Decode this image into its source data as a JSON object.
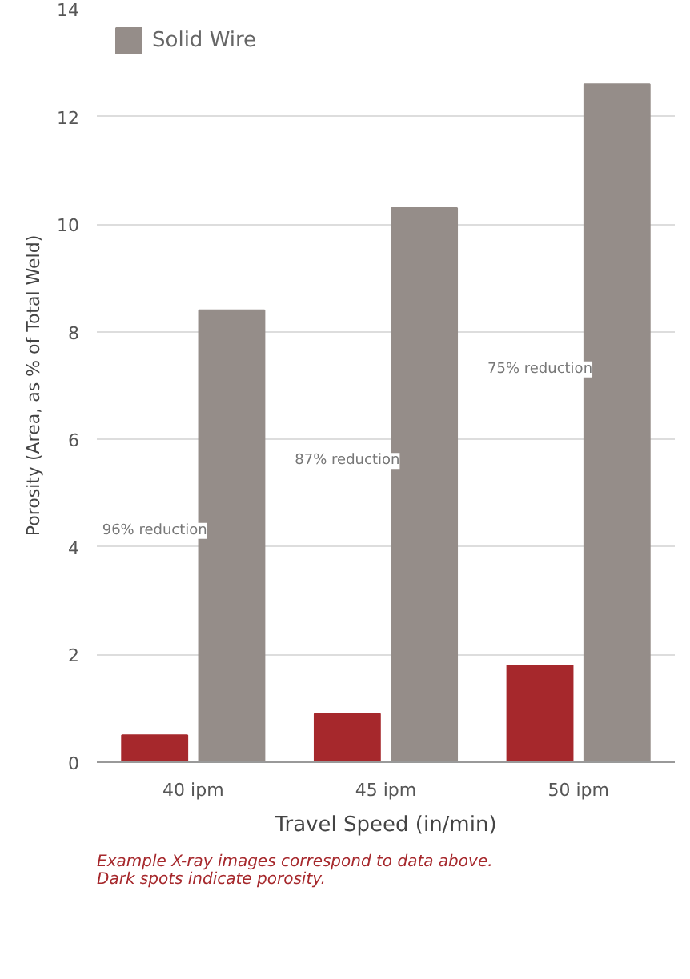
{
  "chart_data": {
    "type": "bar",
    "ylabel": "Porosity (Area, as % of Total Weld)",
    "xlabel": "Travel Speed (in/min)",
    "categories": [
      "40 ipm",
      "45 ipm",
      "50 ipm"
    ],
    "series": [
      {
        "color": "#a6282c",
        "values": [
          0.5,
          0.9,
          1.8
        ]
      },
      {
        "name": "Solid Wire",
        "color": "#958d89",
        "values": [
          8.4,
          10.3,
          12.6
        ]
      }
    ],
    "ylim": [
      0,
      14
    ],
    "yticks": [
      0,
      2,
      4,
      6,
      8,
      10,
      12,
      14
    ],
    "grid": "y",
    "legend": "top left",
    "annotations": [
      {
        "text": "96% reduction",
        "x": "40 ipm",
        "y": 4.3
      },
      {
        "text": "87% reduction",
        "x": "45 ipm",
        "y": 5.6
      },
      {
        "text": "75% reduction",
        "x": "50 ipm",
        "y": 7.3
      },
      "Example X-ray images correspond to data above. Dark spots indicate porosity."
    ]
  }
}
